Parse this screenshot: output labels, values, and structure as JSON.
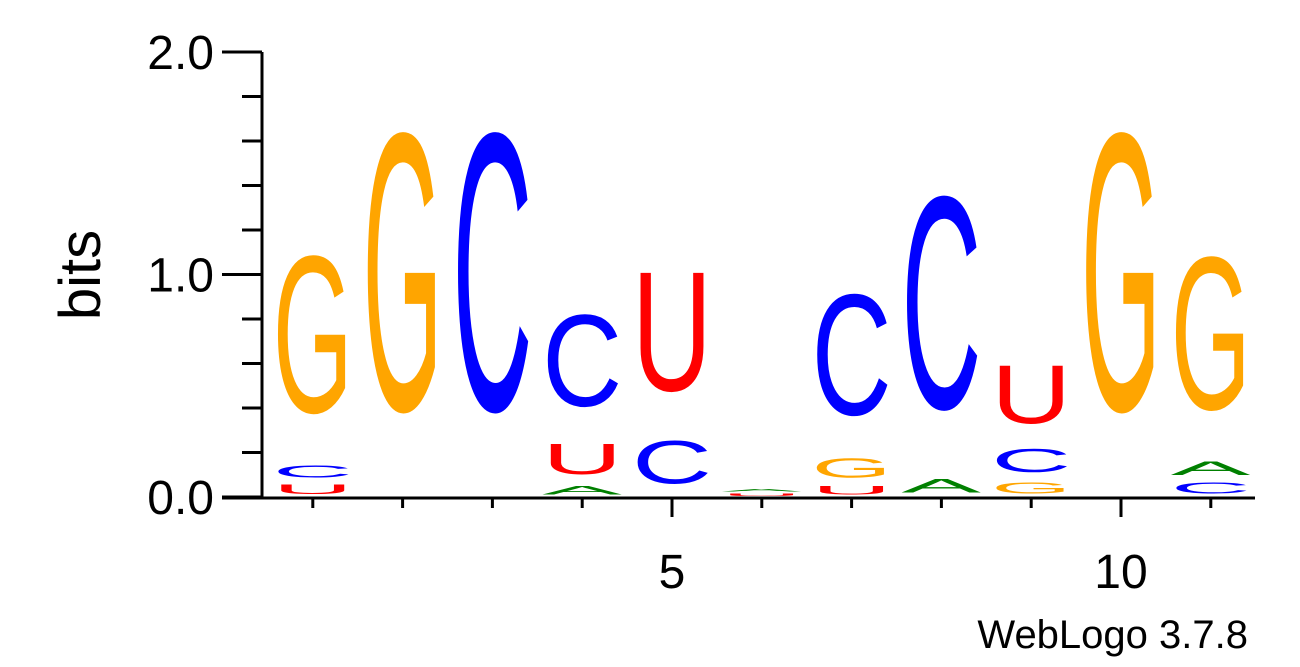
{
  "chart_data": {
    "type": "sequence_logo",
    "ylabel": "bits",
    "ylim": [
      0,
      2
    ],
    "yticks": [
      "0.0",
      "1.0",
      "2.0"
    ],
    "xticks": [
      "5",
      "10"
    ],
    "software": "WebLogo 3.7.8",
    "colors": {
      "G": "#ffa500",
      "C": "#0000ff",
      "U": "#ff0000",
      "A": "#008000"
    },
    "positions": [
      {
        "pos": 1,
        "stack": [
          {
            "letter": "U",
            "bits": 0.07
          },
          {
            "letter": "C",
            "bits": 0.09
          },
          {
            "letter": "G",
            "bits": 1.13
          }
        ]
      },
      {
        "pos": 2,
        "stack": [
          {
            "letter": "G",
            "bits": 2.0
          }
        ]
      },
      {
        "pos": 3,
        "stack": [
          {
            "letter": "C",
            "bits": 2.0
          }
        ]
      },
      {
        "pos": 4,
        "stack": [
          {
            "letter": "A",
            "bits": 0.06
          },
          {
            "letter": "U",
            "bits": 0.22
          },
          {
            "letter": "C",
            "bits": 0.66
          }
        ]
      },
      {
        "pos": 5,
        "stack": [
          {
            "letter": "C",
            "bits": 0.31
          },
          {
            "letter": "U",
            "bits": 0.86
          }
        ]
      },
      {
        "pos": 6,
        "stack": [
          {
            "letter": "U",
            "bits": 0.02
          },
          {
            "letter": "A",
            "bits": 0.02
          }
        ]
      },
      {
        "pos": 7,
        "stack": [
          {
            "letter": "U",
            "bits": 0.06
          },
          {
            "letter": "G",
            "bits": 0.14
          },
          {
            "letter": "C",
            "bits": 0.87
          }
        ]
      },
      {
        "pos": 8,
        "stack": [
          {
            "letter": "A",
            "bits": 0.1
          },
          {
            "letter": "C",
            "bits": 1.53
          }
        ]
      },
      {
        "pos": 9,
        "stack": [
          {
            "letter": "G",
            "bits": 0.08
          },
          {
            "letter": "C",
            "bits": 0.17
          },
          {
            "letter": "U",
            "bits": 0.42
          }
        ]
      },
      {
        "pos": 10,
        "stack": [
          {
            "letter": "G",
            "bits": 2.0
          }
        ]
      },
      {
        "pos": 11,
        "stack": [
          {
            "letter": "C",
            "bits": 0.08
          },
          {
            "letter": "A",
            "bits": 0.1
          },
          {
            "letter": "G",
            "bits": 1.1
          }
        ]
      }
    ]
  }
}
